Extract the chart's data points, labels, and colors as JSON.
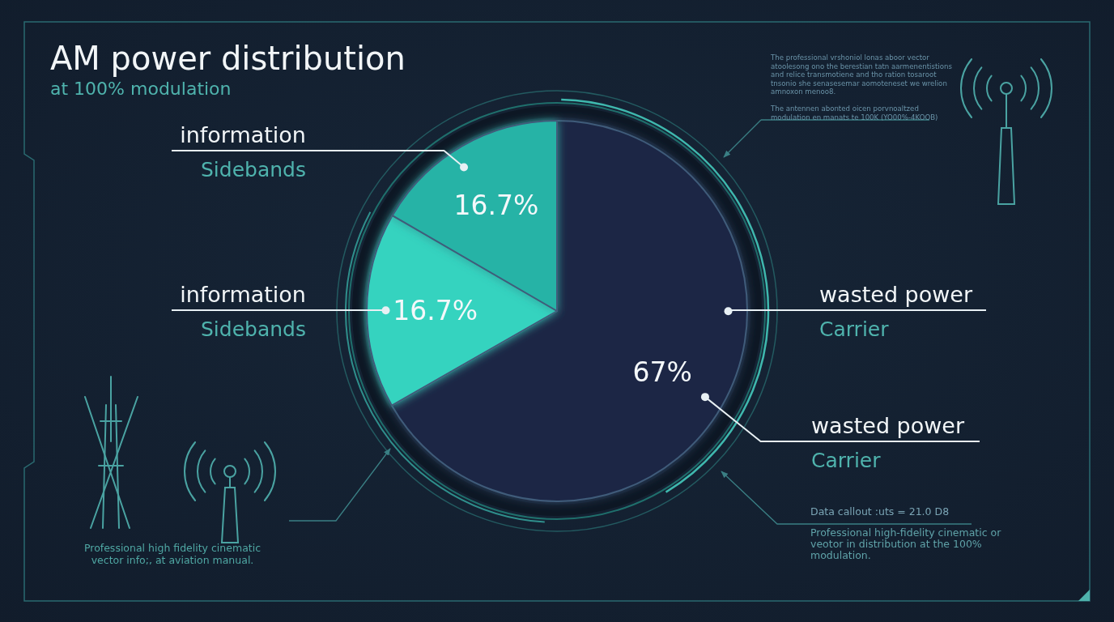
{
  "chart_data": {
    "type": "pie",
    "title": "AM power distribution",
    "subtitle": "at 100% modulation",
    "categories": [
      "wasted power\nCarrier",
      "information\nSidebands",
      "information\nSidebands"
    ],
    "values": [
      67,
      16.7,
      16.7
    ],
    "colors": [
      "#1c2745",
      "#36d3bf",
      "#27b3a6"
    ],
    "value_labels": [
      "67%",
      "16.7%",
      "16.7%"
    ],
    "annotations": [
      "The professional vrshoniol lonas aboor vector\natoolesong ono the berestian tatn aarmenentistions\nand relice transmotiene and tho ration tosaroot\ntnsonio she senasesemar aomoteneset we wrelion\namnoxon menoo8.\n\nThe antennen abonted oicen porvnoaltzed\nmodulation en manats te 100K (YO00%-4KOOB)",
      "wasted power\nCarrier",
      "Data callout :uts = 21.0 D8",
      "Professional high-fidelity cinematic or\nveotor in distribution at the 100%\nmodulation.",
      "Professional high fidelity cinematic\nvector info;, at aviation manual."
    ]
  }
}
